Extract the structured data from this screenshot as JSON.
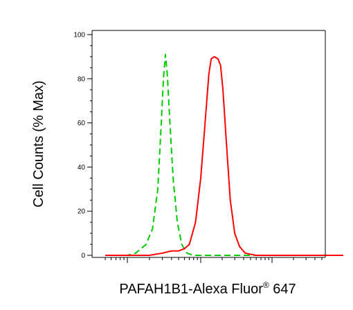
{
  "chart_data": {
    "type": "line",
    "title": "",
    "xlabel": "PAFAH1B1-Alexa Fluor",
    "xlabel_superscript": "®",
    "xlabel_suffix": " 647",
    "ylabel": "Cell Counts (% Max)",
    "ylim": [
      0,
      100
    ],
    "yticks": [
      0,
      20,
      40,
      60,
      80,
      100
    ],
    "ytick_labels": [
      "0",
      "20",
      "40",
      "60",
      "80",
      "100"
    ],
    "x_scale": "log",
    "xlim": [
      0.5,
      1000
    ],
    "grid": false,
    "series": [
      {
        "color": "#00cc00",
        "style": "dashed",
        "points": [
          [
            0.5,
            0
          ],
          [
            1,
            0
          ],
          [
            1.3,
            1
          ],
          [
            1.8,
            5
          ],
          [
            2.2,
            12
          ],
          [
            2.6,
            30
          ],
          [
            2.9,
            60
          ],
          [
            3.1,
            80
          ],
          [
            3.3,
            91
          ],
          [
            3.5,
            82
          ],
          [
            3.8,
            60
          ],
          [
            4.2,
            35
          ],
          [
            4.8,
            15
          ],
          [
            5.5,
            5
          ],
          [
            6.5,
            1
          ],
          [
            8,
            0
          ],
          [
            12,
            0
          ],
          [
            1000,
            0
          ]
        ]
      },
      {
        "color": "#ff0000",
        "style": "solid",
        "points": [
          [
            0.5,
            0
          ],
          [
            2,
            0
          ],
          [
            3,
            1
          ],
          [
            4,
            2
          ],
          [
            5,
            2
          ],
          [
            6,
            3
          ],
          [
            7,
            5
          ],
          [
            8.5,
            15
          ],
          [
            10,
            35
          ],
          [
            11.5,
            60
          ],
          [
            13,
            82
          ],
          [
            14,
            89
          ],
          [
            15.5,
            90
          ],
          [
            17.5,
            89
          ],
          [
            19,
            86
          ],
          [
            20.5,
            75
          ],
          [
            23,
            50
          ],
          [
            26,
            25
          ],
          [
            30,
            10
          ],
          [
            35,
            4
          ],
          [
            42,
            1
          ],
          [
            60,
            0
          ],
          [
            1000,
            0
          ]
        ]
      }
    ]
  }
}
